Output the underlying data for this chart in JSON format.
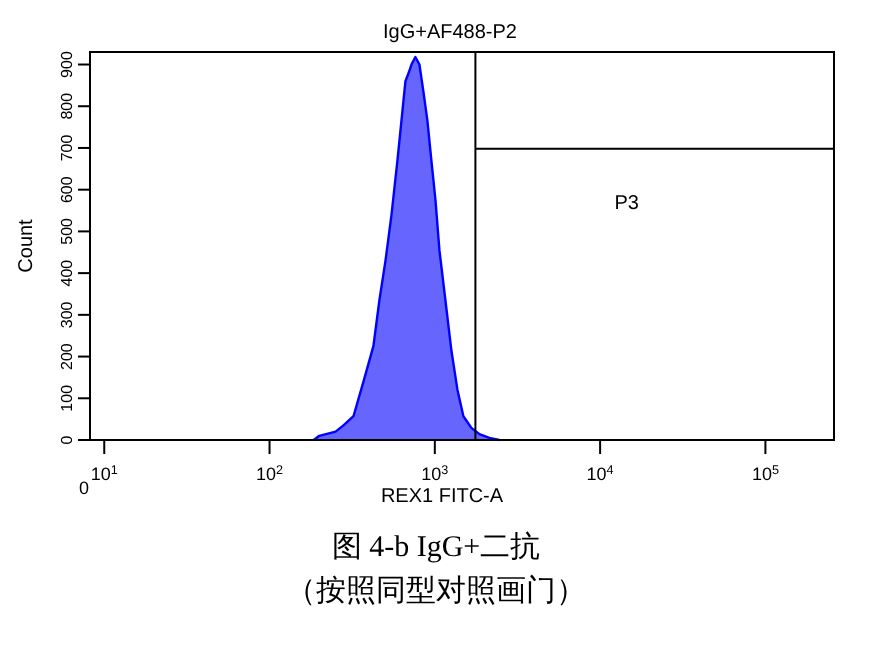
{
  "chart_data": {
    "type": "area",
    "title": "IgG+AF488-P2",
    "xlabel": "REX1 FITC-A",
    "ylabel": "Count",
    "log": "x",
    "xlim": [
      8.2,
      260000
    ],
    "ylim": [
      0,
      930
    ],
    "xticks": [
      {
        "value": 10,
        "label": "10$^{1}$"
      },
      {
        "value": 100,
        "label": "10$^{2}$"
      },
      {
        "value": 1000,
        "label": "10$^{3}$"
      },
      {
        "value": 10000,
        "label": "10$^{4}$"
      },
      {
        "value": 100000,
        "label": "10$^{5}$"
      }
    ],
    "yticks": [
      0,
      100,
      200,
      300,
      400,
      500,
      600,
      700,
      800,
      900
    ],
    "series": [
      {
        "color": "#0000ff",
        "x": [
          185,
          200,
          251,
          280,
          322,
          370,
          425,
          462,
          503,
          547,
          594,
          628,
          664,
          702,
          722,
          763,
          807,
          853,
          902,
          953,
          1009,
          1066,
          1159,
          1259,
          1371,
          1489,
          1664,
          1862,
          2138,
          2459
        ],
        "values": [
          0,
          10,
          20,
          35,
          57,
          140,
          225,
          335,
          430,
          540,
          670,
          765,
          860,
          885,
          900,
          918,
          900,
          835,
          765,
          670,
          575,
          455,
          335,
          215,
          120,
          57,
          29,
          14,
          5,
          0
        ]
      },
      {
        "type": "line",
        "color": "#000000",
        "x": [
          1760,
          260000
        ],
        "values": [
          698,
          698
        ]
      }
    ],
    "ref_lines": [
      {
        "axis": "x",
        "value": 1760
      }
    ],
    "annotations": [
      "0",
      "P3",
      "图 4-b  IgG+二抗",
      "（按照同型对照画门）"
    ]
  }
}
